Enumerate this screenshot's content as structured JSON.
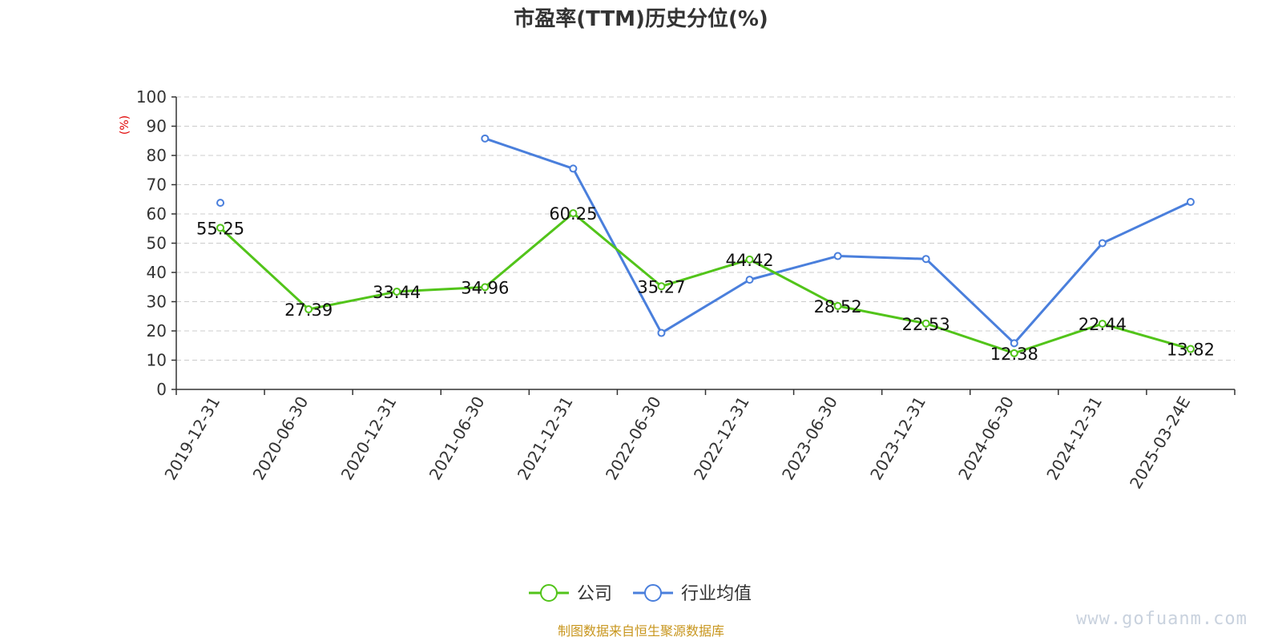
{
  "chart_data": {
    "type": "line",
    "title": "市盈率(TTM)历史分位(%)",
    "ylabel": "(%)",
    "xlabel": "",
    "ylim": [
      0,
      100
    ],
    "yticks": [
      0,
      10,
      20,
      30,
      40,
      50,
      60,
      70,
      80,
      90,
      100
    ],
    "grid": true,
    "legend_position": "bottom-center",
    "categories": [
      "2019-12-31",
      "2020-06-30",
      "2020-12-31",
      "2021-06-30",
      "2021-12-31",
      "2022-06-30",
      "2022-12-31",
      "2023-06-30",
      "2023-12-31",
      "2024-06-30",
      "2024-12-31",
      "2025-03-24E"
    ],
    "series": [
      {
        "name": "公司",
        "color": "#52c41a",
        "values": [
          55.25,
          27.39,
          33.44,
          34.96,
          60.25,
          35.27,
          44.42,
          28.52,
          22.53,
          12.38,
          22.44,
          13.82
        ],
        "labels": [
          "55.25",
          "27.39",
          "33.44",
          "34.96",
          "60.25",
          "35.27",
          "44.42",
          "28.52",
          "22.53",
          "12.38",
          "22.44",
          "13.82"
        ]
      },
      {
        "name": "行业均值",
        "color": "#4a7fdc",
        "values": [
          63.8,
          null,
          null,
          85.8,
          75.5,
          19.3,
          37.5,
          45.6,
          44.6,
          15.8,
          50.0,
          64.1
        ]
      }
    ]
  },
  "footer": {
    "source": "制图数据来自恒生聚源数据库",
    "watermark": "www.gofuanm.com"
  }
}
